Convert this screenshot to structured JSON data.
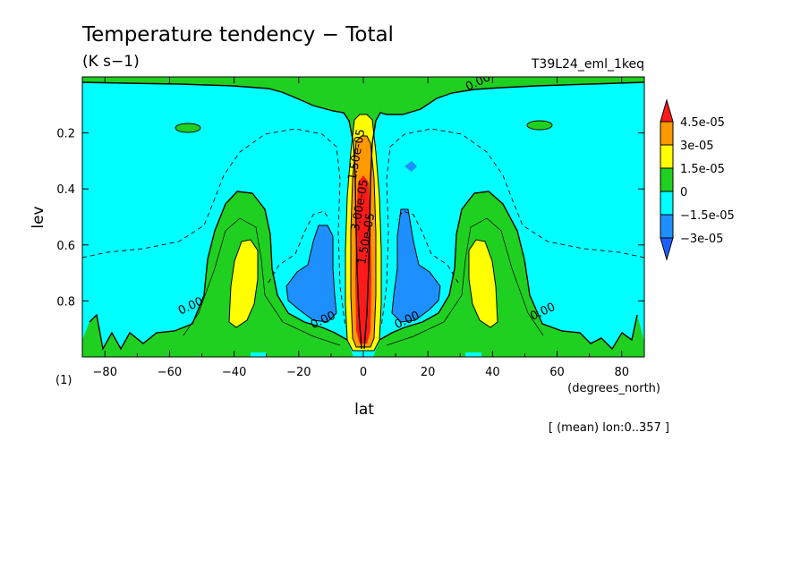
{
  "title": "Temperature tendency − Total",
  "units": "(K s−1)",
  "run_id": "T39L24_eml_1keq",
  "panel_label": "(1)",
  "x_unit_label": "(degrees_north)",
  "footer_note": "[ (mean) lon:0..357 ]",
  "colors": {
    "neg2": "#1e8fff",
    "neg1": "#00ffff",
    "zero": "#20d020",
    "pos1": "#ffff00",
    "pos2": "#ff9900",
    "pos3": "#ff1a1a",
    "dash_line": "#000000"
  },
  "chart_data": {
    "type": "heatmap",
    "title": "Temperature tendency − Total",
    "xlabel": "lat",
    "ylabel": "lev",
    "xlim": [
      -87,
      87
    ],
    "ylim": [
      1.0,
      0.0
    ],
    "xticks": [
      -80,
      -60,
      -40,
      -20,
      0,
      20,
      40,
      60,
      80
    ],
    "xtick_labels": [
      "−80",
      "−60",
      "−40",
      "−20",
      "0",
      "20",
      "40",
      "60",
      "80"
    ],
    "yticks": [
      0.2,
      0.4,
      0.6,
      0.8
    ],
    "ytick_labels": [
      "0.2",
      "0.4",
      "0.6",
      "0.8"
    ],
    "colorbar": {
      "levels": [
        "4.5e-05",
        "3e-05",
        "1.5e-05",
        "0",
        "−1.5e-05",
        "−3e-05"
      ],
      "colors": [
        "#ff1a1a",
        "#ff9900",
        "#ffff00",
        "#20d020",
        "#00ffff",
        "#1e8fff"
      ]
    },
    "contour_labels": [
      {
        "text": "0.00",
        "lat": 36,
        "lev": 0.03
      },
      {
        "text": "1.50e-05",
        "lat": -1,
        "lev": 0.28
      },
      {
        "text": "3.00e-05",
        "lat": 0,
        "lev": 0.46
      },
      {
        "text": "1.50e-05",
        "lat": 2,
        "lev": 0.58
      },
      {
        "text": "0.00",
        "lat": -53,
        "lev": 0.83
      },
      {
        "text": "0.00",
        "lat": -12,
        "lev": 0.88
      },
      {
        "text": "0.00",
        "lat": 14,
        "lev": 0.88
      },
      {
        "text": "0.00",
        "lat": 56,
        "lev": 0.85
      }
    ]
  }
}
